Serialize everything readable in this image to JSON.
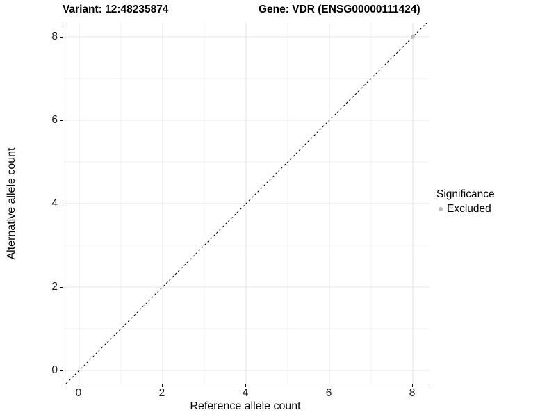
{
  "titles": {
    "variant": "Variant: 12:48235874",
    "gene": "Gene: VDR (ENSG00000111424)"
  },
  "axes": {
    "x_label": "Reference allele count",
    "y_label": "Alternative allele count"
  },
  "legend": {
    "title": "Significance",
    "items": [
      {
        "label": "Excluded",
        "color": "#b9b9b9"
      }
    ]
  },
  "colors": {
    "background": "#ffffff",
    "axis_line": "#000000",
    "grid_major": "#e4e4e4",
    "grid_minor": "#f1f1f1",
    "tick_label": "#1a1a1a",
    "reference_line": "#000000",
    "excluded_point": "#b9b9b9"
  },
  "chart_data": {
    "type": "scatter",
    "title": "Variant: 12:48235874    Gene: VDR (ENSG00000111424)",
    "xlabel": "Reference allele count",
    "ylabel": "Alternative allele count",
    "x_ticks": [
      0,
      2,
      4,
      6,
      8
    ],
    "y_ticks": [
      0,
      2,
      4,
      6,
      8
    ],
    "x_minor_ticks": [
      1,
      3,
      5,
      7
    ],
    "y_minor_ticks": [
      1,
      3,
      5,
      7
    ],
    "xlim": [
      -0.383,
      8.383
    ],
    "ylim": [
      -0.317,
      8.333
    ],
    "grid": true,
    "legend_position": "right",
    "reference_line": {
      "kind": "identity y=x",
      "style": "dashed",
      "color": "#000000"
    },
    "series": [
      {
        "name": "Excluded",
        "color": "#b9b9b9",
        "points": [
          {
            "x": 8,
            "y": 8
          }
        ]
      }
    ]
  }
}
